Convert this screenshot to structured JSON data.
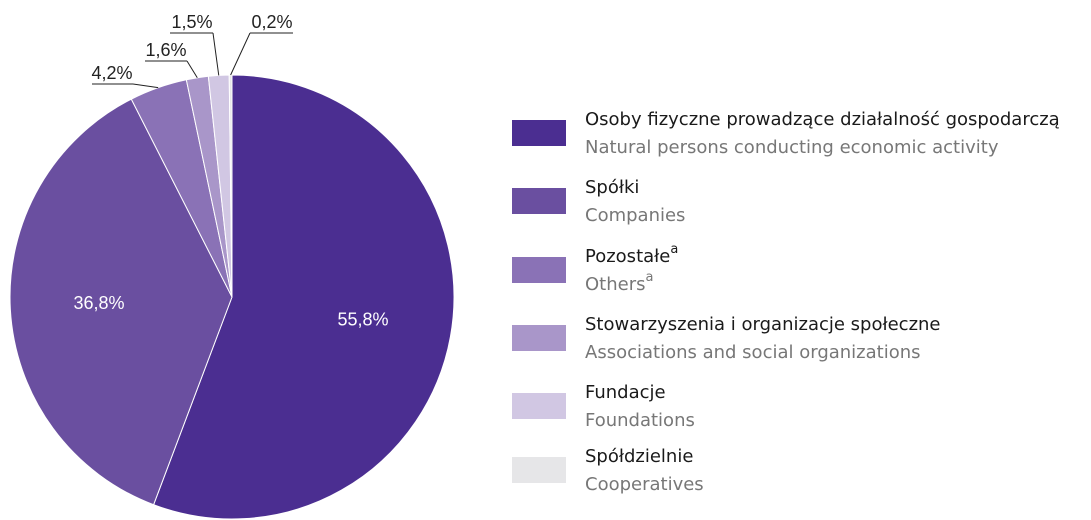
{
  "chart_data": {
    "type": "pie",
    "categories": [
      "Osoby fizyczne prowadzące działalność gospodarczą",
      "Spółki",
      "Pozostałe",
      "Stowarzyszenia i organizacje społeczne",
      "Fundacje",
      "Spółdzielnie"
    ],
    "categories_en": [
      "Natural persons conducting economic activity",
      "Companies",
      "Others",
      "Associations and social organizations",
      "Foundations",
      "Cooperatives"
    ],
    "category_notes": [
      null,
      null,
      "a",
      null,
      null,
      null
    ],
    "values": [
      55.8,
      36.8,
      4.2,
      1.6,
      1.5,
      0.2
    ],
    "value_labels": [
      "55,8%",
      "36,8%",
      "4,2%",
      "1,6%",
      "1,5%",
      "0,2%"
    ],
    "colors": [
      "#4b2e91",
      "#6a4fa0",
      "#8a72b6",
      "#a996c9",
      "#d1c7e3",
      "#e6e6e8"
    ]
  }
}
